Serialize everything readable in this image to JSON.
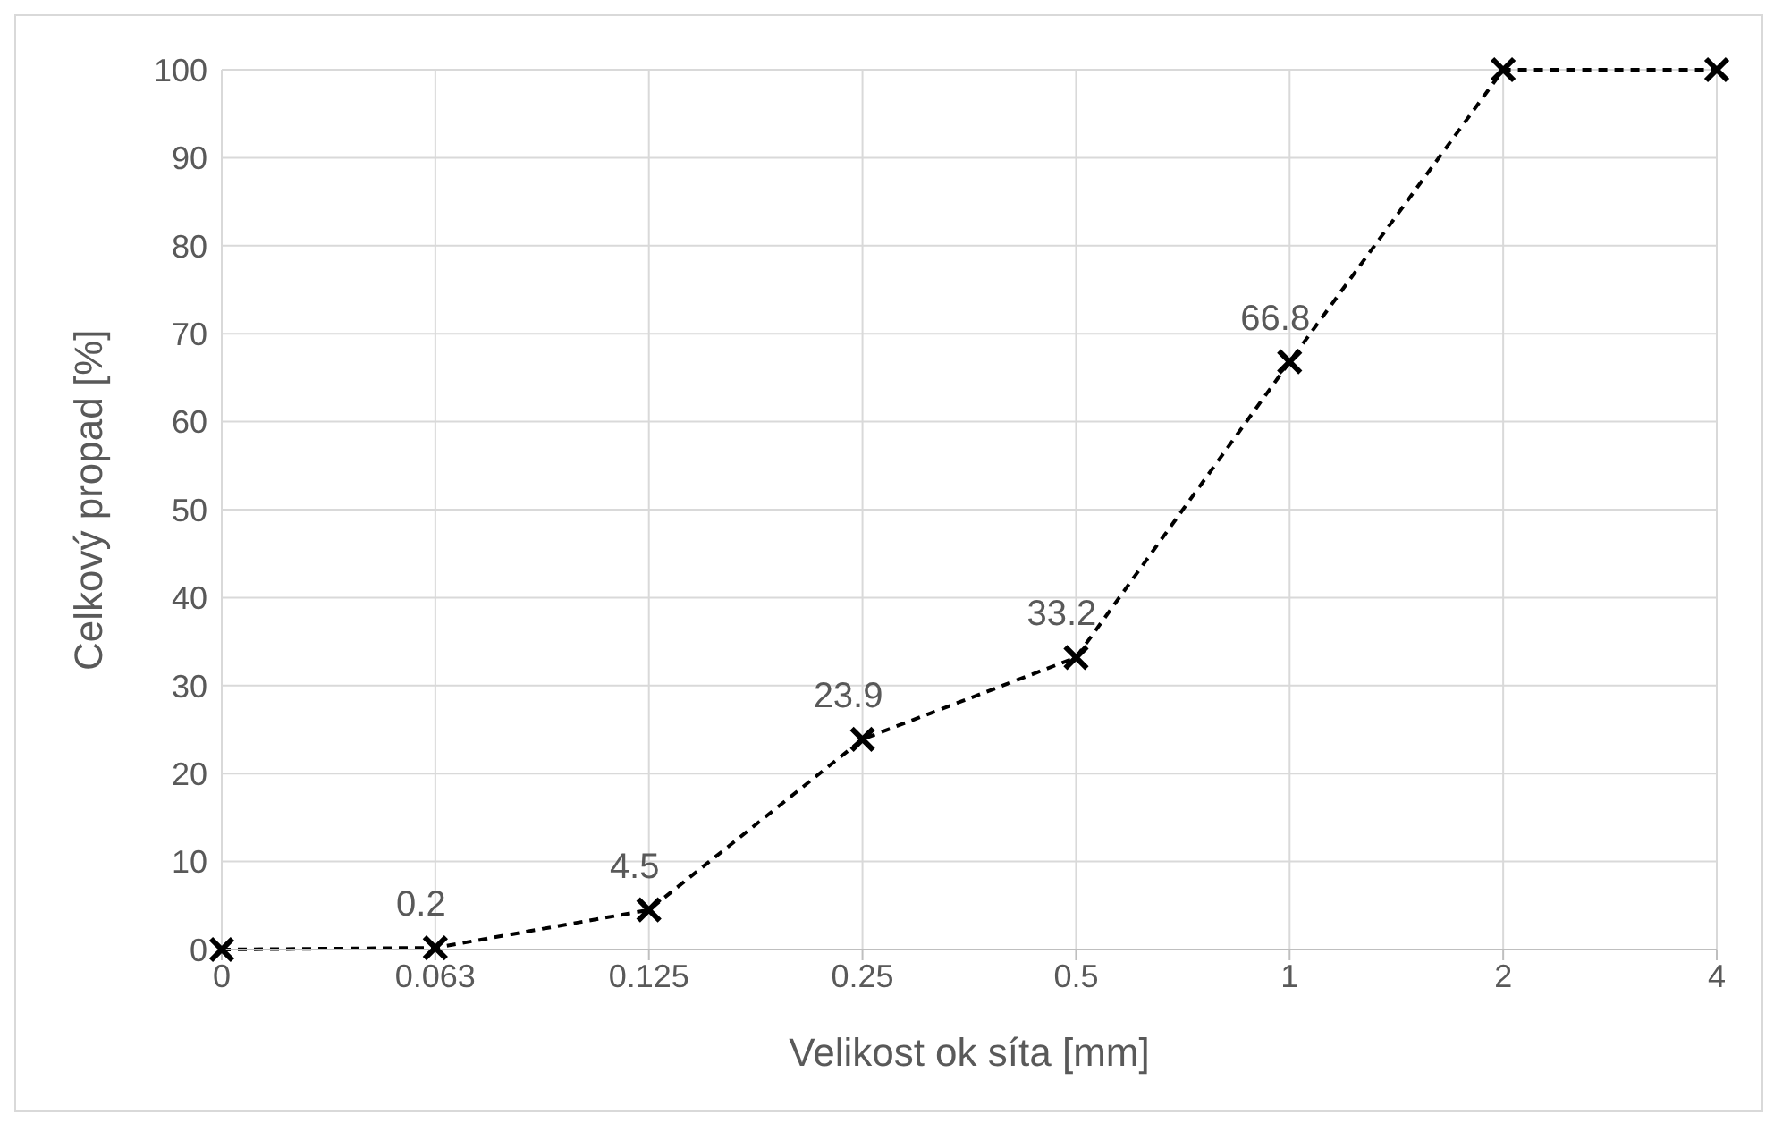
{
  "chart_data": {
    "type": "line",
    "xlabel": "Velikost ok síta [mm]",
    "ylabel": "Celkový propad [%]",
    "categories": [
      "0",
      "0.063",
      "0.125",
      "0.25",
      "0.5",
      "1",
      "2",
      "4"
    ],
    "series": [
      {
        "color": "#000000",
        "values": [
          0,
          0.2,
          4.5,
          23.9,
          33.2,
          66.8,
          100,
          100
        ],
        "value_labels": [
          null,
          "0.2",
          "4.5",
          "23.9",
          "33.2",
          "66.8",
          null,
          null
        ]
      }
    ],
    "ylim": [
      0,
      100
    ],
    "yticks": [
      0,
      10,
      20,
      30,
      40,
      50,
      60,
      70,
      80,
      90,
      100
    ],
    "grid": true,
    "marker": "cross",
    "line_style": "dashed"
  }
}
